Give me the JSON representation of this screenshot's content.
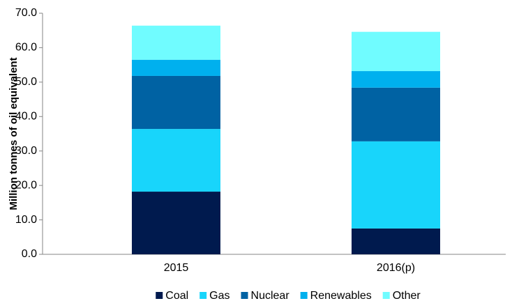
{
  "chart_data": {
    "type": "stacked_bar",
    "y_label": "Million tonnes of oil equivalent",
    "categories": [
      "2015",
      "2016(p)"
    ],
    "series": [
      {
        "name": "Coal",
        "color": "#001a4e",
        "values": [
          18.2,
          7.5
        ]
      },
      {
        "name": "Gas",
        "color": "#18d5fb",
        "values": [
          18.2,
          25.3
        ]
      },
      {
        "name": "Nuclear",
        "color": "#0062a3",
        "values": [
          15.4,
          15.6
        ]
      },
      {
        "name": "Renewables",
        "color": "#00b0ee",
        "values": [
          4.7,
          4.8
        ]
      },
      {
        "name": "Other",
        "color": "#70fcff",
        "values": [
          9.9,
          11.4
        ]
      }
    ],
    "ylim": [
      0,
      70
    ],
    "yticks": [
      {
        "value": 0,
        "label": "0.0"
      },
      {
        "value": 10,
        "label": "10.0"
      },
      {
        "value": 20,
        "label": "20.0"
      },
      {
        "value": 30,
        "label": "30.0"
      },
      {
        "value": 40,
        "label": "40.0"
      },
      {
        "value": 50,
        "label": "50.0"
      },
      {
        "value": 60,
        "label": "60.0"
      },
      {
        "value": 70,
        "label": "70.0"
      }
    ],
    "legend": "bottom"
  }
}
